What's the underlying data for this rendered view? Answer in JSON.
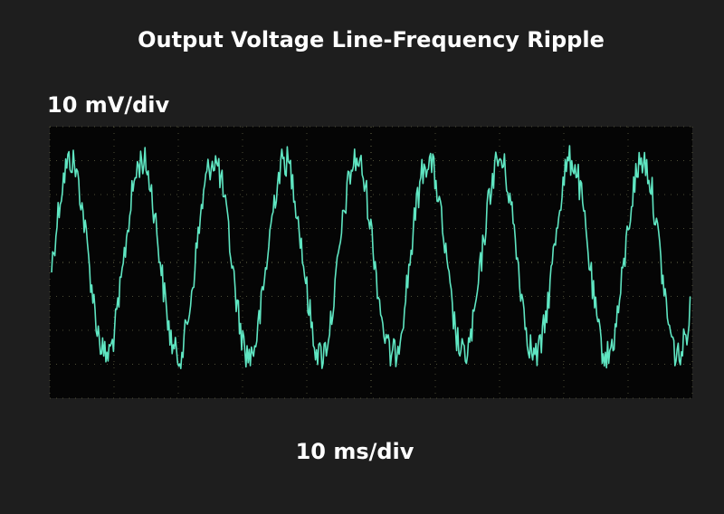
{
  "title": "Output Voltage Line-Frequency Ripple",
  "vertical_scale": "10 mV/div",
  "horizontal_scale": "10 ms/div"
}
